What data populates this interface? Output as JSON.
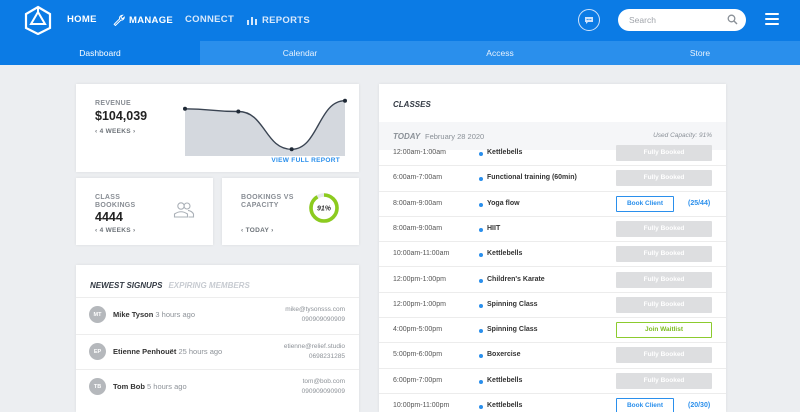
{
  "nav": {
    "items": [
      {
        "label": "HOME",
        "icon": "none"
      },
      {
        "label": "MANAGE",
        "icon": "wrench-icon"
      },
      {
        "label": "CONNECT",
        "icon": "none"
      },
      {
        "label": "REPORTS",
        "icon": "bar-chart-icon"
      }
    ],
    "search_placeholder": "Search",
    "accent": "#0b7be5"
  },
  "subtabs": [
    "Dashboard",
    "Calendar",
    "Access",
    "Store"
  ],
  "revenue": {
    "label": "REVENUE",
    "value": "$104,039",
    "period": "4 WEEKS",
    "link": "VIEW FULL REPORT",
    "trend": [
      0.8,
      0.75,
      0.05,
      0.95
    ]
  },
  "class_bookings": {
    "label": "CLASS BOOKINGS",
    "value": "4444",
    "period": "4 WEEKS"
  },
  "capacity": {
    "label": "BOOKINGS VS CAPACITY",
    "value": "91%",
    "percent": 91,
    "period": "TODAY",
    "color": "#8ccb1f"
  },
  "signups": {
    "tab_active": "NEWEST SIGNUPS",
    "tab_inactive": "EXPIRING MEMBERS",
    "rows": [
      {
        "initials": "MT",
        "name": "Mike Tyson",
        "time": "3 hours ago",
        "email": "mike@tysonsss.com",
        "phone": "090909090909"
      },
      {
        "initials": "EP",
        "name": "Etienne Penhouët",
        "time": "25 hours ago",
        "email": "etienne@relief.studio",
        "phone": "0698231285"
      },
      {
        "initials": "TB",
        "name": "Tom Bob",
        "time": "5 hours ago",
        "email": "tom@bob.com",
        "phone": "090909090909"
      }
    ]
  },
  "classes": {
    "title": "CLASSES",
    "today": "TODAY",
    "date": "February 28 2020",
    "capacity": "Used Capacity: 91%",
    "rows": [
      {
        "time": "12:00am-1:00am",
        "name": "Kettlebells",
        "action": "Fully Booked",
        "kind": "full",
        "count": ""
      },
      {
        "time": "6:00am-7:00am",
        "name": "Functional training (60min)",
        "action": "Fully Booked",
        "kind": "full",
        "count": ""
      },
      {
        "time": "8:00am-9:00am",
        "name": "Yoga flow",
        "action": "Book Client",
        "kind": "book",
        "count": "(25/44)"
      },
      {
        "time": "8:00am-9:00am",
        "name": "HIIT",
        "action": "Fully Booked",
        "kind": "full",
        "count": ""
      },
      {
        "time": "10:00am-11:00am",
        "name": "Kettlebells",
        "action": "Fully Booked",
        "kind": "full",
        "count": ""
      },
      {
        "time": "12:00pm-1:00pm",
        "name": "Children's Karate",
        "action": "Fully Booked",
        "kind": "full",
        "count": ""
      },
      {
        "time": "12:00pm-1:00pm",
        "name": "Spinning Class",
        "action": "Fully Booked",
        "kind": "full",
        "count": ""
      },
      {
        "time": "4:00pm-5:00pm",
        "name": "Spinning Class",
        "action": "Join Waitlist",
        "kind": "wait",
        "count": ""
      },
      {
        "time": "5:00pm-6:00pm",
        "name": "Boxercise",
        "action": "Fully Booked",
        "kind": "full",
        "count": ""
      },
      {
        "time": "6:00pm-7:00pm",
        "name": "Kettlebells",
        "action": "Fully Booked",
        "kind": "full",
        "count": ""
      },
      {
        "time": "10:00pm-11:00pm",
        "name": "Kettlebells",
        "action": "Book Client",
        "kind": "book",
        "count": "(20/30)"
      }
    ]
  }
}
